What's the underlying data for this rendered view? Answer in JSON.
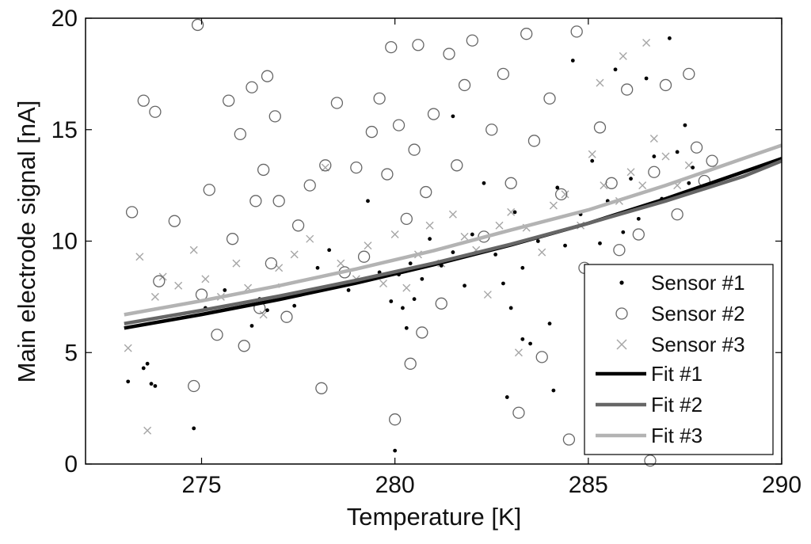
{
  "chart_data": {
    "type": "scatter",
    "title": "",
    "xlabel": "Temperature [K]",
    "ylabel": "Main electrode signal [nA]",
    "xlim": [
      272,
      290
    ],
    "ylim": [
      0,
      20
    ],
    "xticks": [
      275,
      280,
      285,
      290
    ],
    "yticks": [
      0,
      5,
      10,
      15,
      20
    ],
    "grid": false,
    "legend_position": "bottom-right",
    "series": [
      {
        "name": "Sensor #1",
        "marker": "dot",
        "color": "#000000",
        "points": [
          [
            273.1,
            3.7
          ],
          [
            273.5,
            4.3
          ],
          [
            273.6,
            4.5
          ],
          [
            273.7,
            3.6
          ],
          [
            273.8,
            3.5
          ],
          [
            274.8,
            1.6
          ],
          [
            275.1,
            7.0
          ],
          [
            275.6,
            7.8
          ],
          [
            276.3,
            6.2
          ],
          [
            276.5,
            7.4
          ],
          [
            276.7,
            6.9
          ],
          [
            277.0,
            8.0
          ],
          [
            277.4,
            7.1
          ],
          [
            278.0,
            8.8
          ],
          [
            278.3,
            9.6
          ],
          [
            278.8,
            7.8
          ],
          [
            279.1,
            8.2
          ],
          [
            279.3,
            11.8
          ],
          [
            279.6,
            8.6
          ],
          [
            279.9,
            7.3
          ],
          [
            280.0,
            0.6
          ],
          [
            280.1,
            8.5
          ],
          [
            280.2,
            7.0
          ],
          [
            280.3,
            6.1
          ],
          [
            280.4,
            9.0
          ],
          [
            280.5,
            7.4
          ],
          [
            280.7,
            8.3
          ],
          [
            280.9,
            10.1
          ],
          [
            281.2,
            8.9
          ],
          [
            281.5,
            9.5
          ],
          [
            281.8,
            8.0
          ],
          [
            282.0,
            10.3
          ],
          [
            282.3,
            12.6
          ],
          [
            282.6,
            9.4
          ],
          [
            282.8,
            8.1
          ],
          [
            283.0,
            7.0
          ],
          [
            283.1,
            11.3
          ],
          [
            283.3,
            8.8
          ],
          [
            283.5,
            5.4
          ],
          [
            283.7,
            10.0
          ],
          [
            284.1,
            3.3
          ],
          [
            284.2,
            12.4
          ],
          [
            284.4,
            9.8
          ],
          [
            284.6,
            18.1
          ],
          [
            284.8,
            11.2
          ],
          [
            285.1,
            13.6
          ],
          [
            285.3,
            9.9
          ],
          [
            285.5,
            11.8
          ],
          [
            285.7,
            17.7
          ],
          [
            285.9,
            10.4
          ],
          [
            286.1,
            12.8
          ],
          [
            286.3,
            11.0
          ],
          [
            286.5,
            17.3
          ],
          [
            286.7,
            13.8
          ],
          [
            286.9,
            11.9
          ],
          [
            287.1,
            19.1
          ],
          [
            287.3,
            14.0
          ],
          [
            287.5,
            15.2
          ],
          [
            287.6,
            12.6
          ],
          [
            287.7,
            13.3
          ],
          [
            281.5,
            15.6
          ],
          [
            284.0,
            6.3
          ],
          [
            283.3,
            5.6
          ],
          [
            282.9,
            3.0
          ]
        ]
      },
      {
        "name": "Sensor #2",
        "marker": "circle",
        "color": "#666666",
        "points": [
          [
            273.2,
            11.3
          ],
          [
            273.5,
            16.3
          ],
          [
            273.8,
            15.8
          ],
          [
            273.9,
            8.2
          ],
          [
            274.3,
            10.9
          ],
          [
            274.8,
            3.5
          ],
          [
            274.9,
            19.7
          ],
          [
            275.0,
            7.6
          ],
          [
            275.2,
            12.3
          ],
          [
            275.4,
            5.8
          ],
          [
            275.7,
            16.3
          ],
          [
            275.8,
            10.1
          ],
          [
            276.0,
            14.8
          ],
          [
            276.1,
            5.3
          ],
          [
            276.3,
            16.9
          ],
          [
            276.4,
            11.8
          ],
          [
            276.5,
            7.0
          ],
          [
            276.6,
            13.2
          ],
          [
            276.7,
            17.4
          ],
          [
            276.8,
            9.0
          ],
          [
            276.9,
            15.6
          ],
          [
            277.0,
            11.8
          ],
          [
            277.2,
            6.6
          ],
          [
            277.5,
            10.7
          ],
          [
            277.8,
            12.5
          ],
          [
            278.1,
            3.4
          ],
          [
            278.2,
            13.4
          ],
          [
            278.5,
            16.2
          ],
          [
            278.7,
            8.6
          ],
          [
            279.0,
            13.3
          ],
          [
            279.2,
            9.3
          ],
          [
            279.4,
            14.9
          ],
          [
            279.6,
            16.4
          ],
          [
            279.8,
            13.0
          ],
          [
            279.9,
            18.7
          ],
          [
            280.0,
            2.0
          ],
          [
            280.1,
            15.2
          ],
          [
            280.3,
            11.0
          ],
          [
            280.4,
            4.5
          ],
          [
            280.5,
            14.1
          ],
          [
            280.6,
            18.8
          ],
          [
            280.7,
            5.9
          ],
          [
            280.8,
            12.2
          ],
          [
            281.0,
            15.7
          ],
          [
            281.2,
            7.2
          ],
          [
            281.4,
            18.4
          ],
          [
            281.6,
            13.4
          ],
          [
            281.8,
            17.0
          ],
          [
            282.0,
            19.0
          ],
          [
            282.3,
            10.2
          ],
          [
            282.5,
            15.0
          ],
          [
            282.8,
            17.5
          ],
          [
            283.0,
            12.6
          ],
          [
            283.2,
            2.3
          ],
          [
            283.4,
            19.3
          ],
          [
            283.6,
            14.5
          ],
          [
            283.8,
            4.8
          ],
          [
            284.0,
            16.4
          ],
          [
            284.3,
            12.1
          ],
          [
            284.5,
            1.1
          ],
          [
            284.7,
            19.4
          ],
          [
            284.9,
            8.8
          ],
          [
            285.1,
            5.7
          ],
          [
            285.3,
            15.1
          ],
          [
            285.6,
            12.6
          ],
          [
            285.8,
            9.6
          ],
          [
            286.0,
            16.8
          ],
          [
            286.3,
            10.3
          ],
          [
            286.6,
            0.15
          ],
          [
            286.7,
            13.1
          ],
          [
            286.9,
            8.3
          ],
          [
            287.0,
            17.0
          ],
          [
            287.3,
            11.2
          ],
          [
            287.6,
            17.5
          ],
          [
            287.8,
            14.2
          ],
          [
            288.0,
            12.7
          ],
          [
            288.2,
            13.6
          ]
        ]
      },
      {
        "name": "Sensor #3",
        "marker": "x",
        "color": "#a6a6a6",
        "points": [
          [
            273.1,
            5.2
          ],
          [
            273.4,
            9.3
          ],
          [
            273.6,
            1.5
          ],
          [
            273.8,
            7.5
          ],
          [
            274.0,
            8.4
          ],
          [
            274.4,
            8.0
          ],
          [
            274.8,
            9.6
          ],
          [
            275.1,
            8.3
          ],
          [
            275.5,
            7.5
          ],
          [
            275.9,
            9.0
          ],
          [
            276.2,
            7.9
          ],
          [
            276.6,
            6.7
          ],
          [
            277.0,
            8.8
          ],
          [
            277.4,
            9.4
          ],
          [
            277.8,
            10.1
          ],
          [
            278.2,
            13.3
          ],
          [
            278.6,
            9.0
          ],
          [
            279.0,
            8.3
          ],
          [
            279.3,
            9.8
          ],
          [
            279.7,
            8.1
          ],
          [
            280.0,
            10.3
          ],
          [
            280.3,
            7.9
          ],
          [
            280.6,
            9.4
          ],
          [
            280.9,
            10.7
          ],
          [
            281.2,
            9.0
          ],
          [
            281.5,
            11.2
          ],
          [
            281.8,
            10.2
          ],
          [
            282.1,
            9.6
          ],
          [
            282.4,
            7.6
          ],
          [
            282.7,
            10.7
          ],
          [
            283.0,
            11.3
          ],
          [
            283.2,
            5.0
          ],
          [
            283.4,
            10.6
          ],
          [
            283.8,
            9.5
          ],
          [
            284.1,
            11.6
          ],
          [
            284.4,
            12.1
          ],
          [
            284.8,
            10.7
          ],
          [
            285.1,
            13.9
          ],
          [
            285.4,
            12.5
          ],
          [
            285.8,
            11.8
          ],
          [
            286.1,
            13.1
          ],
          [
            286.4,
            12.5
          ],
          [
            286.7,
            14.6
          ],
          [
            287.0,
            13.8
          ],
          [
            287.3,
            12.5
          ],
          [
            287.6,
            13.4
          ],
          [
            286.5,
            18.9
          ],
          [
            285.9,
            18.3
          ],
          [
            285.3,
            17.1
          ]
        ]
      }
    ],
    "fits": [
      {
        "name": "Fit #1",
        "color": "#000000",
        "x": [
          273,
          275,
          277,
          279,
          281,
          283,
          285,
          287,
          289,
          290
        ],
        "y": [
          6.1,
          6.71,
          7.38,
          8.12,
          8.94,
          9.83,
          10.8,
          11.9,
          13.1,
          13.7
        ]
      },
      {
        "name": "Fit #2",
        "color": "#666666",
        "x": [
          273,
          275,
          277,
          279,
          281,
          283,
          285,
          287,
          289,
          290
        ],
        "y": [
          6.3,
          6.89,
          7.53,
          8.24,
          9.01,
          9.86,
          10.8,
          11.8,
          12.9,
          13.6
        ]
      },
      {
        "name": "Fit #3",
        "color": "#b3b3b3",
        "x": [
          273,
          275,
          277,
          279,
          281,
          283,
          285,
          287,
          289,
          290
        ],
        "y": [
          6.7,
          7.32,
          8.0,
          8.75,
          9.57,
          10.5,
          11.4,
          12.5,
          13.7,
          14.3
        ]
      }
    ]
  }
}
